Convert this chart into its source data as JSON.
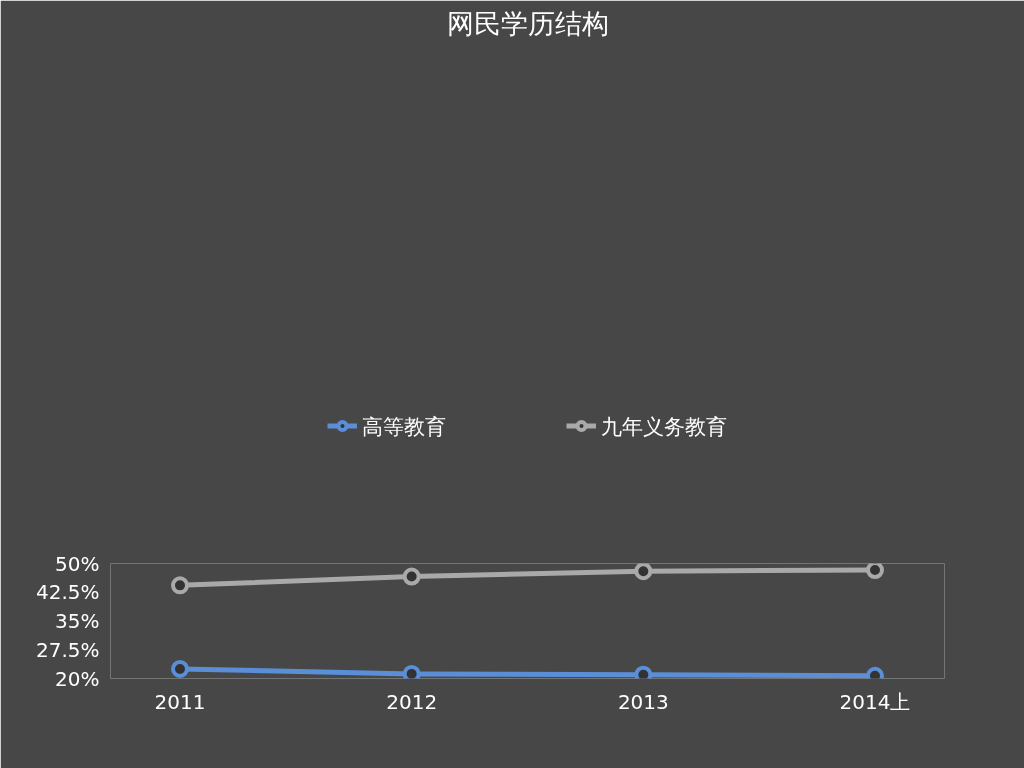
{
  "chart_data": {
    "type": "line",
    "title": "网民学历结构",
    "categories": [
      "2011",
      "2012",
      "2013",
      "2014上"
    ],
    "series": [
      {
        "name": "高等教育",
        "color": "#5a8fd8",
        "values": [
          22.5,
          21.2,
          21.0,
          20.7
        ]
      },
      {
        "name": "九年义务教育",
        "color": "#a9a9a9",
        "values": [
          44.3,
          46.6,
          48.0,
          48.3
        ]
      }
    ],
    "ylim": [
      20,
      50
    ],
    "yticks": [
      {
        "value": 20,
        "label": "20%"
      },
      {
        "value": 27.5,
        "label": "27.5%"
      },
      {
        "value": 35,
        "label": "35%"
      },
      {
        "value": 42.5,
        "label": "42.5%"
      },
      {
        "value": 50,
        "label": "50%"
      }
    ],
    "grid": false,
    "legend": "top",
    "marker": "circle",
    "line_style": "solid"
  }
}
